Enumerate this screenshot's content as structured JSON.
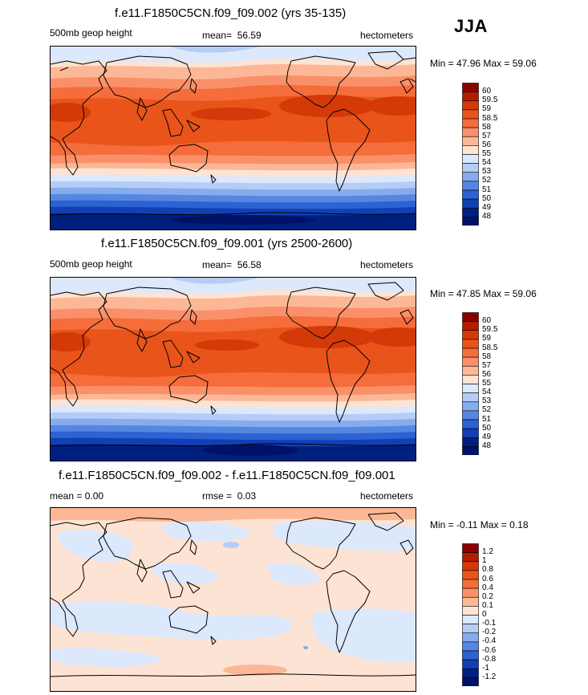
{
  "season": "JJA",
  "panels": [
    {
      "title": "f.e11.F1850C5CN.f09_f09.002 (yrs 35-135)",
      "left_label": "500mb geop height",
      "mean_label": "mean=",
      "mean_value": "56.59",
      "units": "hectometers",
      "minmax_text": "Min =  47.96 Max =  59.06"
    },
    {
      "title": "f.e11.F1850C5CN.f09_f09.001 (yrs 2500-2600)",
      "left_label": "500mb geop height",
      "mean_label": "mean=",
      "mean_value": "56.58",
      "units": "hectometers",
      "minmax_text": "Min =  47.85 Max =  59.06"
    },
    {
      "title": "f.e11.F1850C5CN.f09_f09.002 - f.e11.F1850C5CN.f09_f09.001",
      "left_label": "mean =   0.00",
      "mean_label": "rmse =",
      "mean_value": "0.03",
      "units": "hectometers",
      "minmax_text": "Min =  -0.11 Max =   0.18"
    }
  ],
  "chart_data": [
    {
      "type": "heatmap",
      "title": "f.e11.F1850C5CN.f09_f09.002 (yrs 35-135)",
      "variable": "500mb geop height",
      "units": "hectometers",
      "mean": 56.59,
      "min": 47.96,
      "max": 59.06,
      "colorbar_levels": [
        "60",
        "59.5",
        "59",
        "58.5",
        "58",
        "57",
        "56",
        "55",
        "54",
        "53",
        "52",
        "51",
        "50",
        "49",
        "48"
      ],
      "colorbar_colors": [
        "#8b0000",
        "#b41c00",
        "#d33a08",
        "#e9541a",
        "#f46d3a",
        "#fa9069",
        "#fcb896",
        "#fde3d3",
        "#dce8fb",
        "#b5cdf6",
        "#86acee",
        "#5587e2",
        "#2d62d3",
        "#1140b5",
        "#00207f",
        "#001268"
      ]
    },
    {
      "type": "heatmap",
      "title": "f.e11.F1850C5CN.f09_f09.001 (yrs 2500-2600)",
      "variable": "500mb geop height",
      "units": "hectometers",
      "mean": 56.58,
      "min": 47.85,
      "max": 59.06,
      "colorbar_levels": [
        "60",
        "59.5",
        "59",
        "58.5",
        "58",
        "57",
        "56",
        "55",
        "54",
        "53",
        "52",
        "51",
        "50",
        "49",
        "48"
      ],
      "colorbar_colors": [
        "#8b0000",
        "#b41c00",
        "#d33a08",
        "#e9541a",
        "#f46d3a",
        "#fa9069",
        "#fcb896",
        "#fde3d3",
        "#dce8fb",
        "#b5cdf6",
        "#86acee",
        "#5587e2",
        "#2d62d3",
        "#1140b5",
        "#00207f",
        "#001268"
      ]
    },
    {
      "type": "heatmap",
      "title": "f.e11.F1850C5CN.f09_f09.002 - f.e11.F1850C5CN.f09_f09.001",
      "units": "hectometers",
      "mean": 0.0,
      "rmse": 0.03,
      "min": -0.11,
      "max": 0.18,
      "colorbar_levels": [
        "1.2",
        "1",
        "0.8",
        "0.6",
        "0.4",
        "0.2",
        "0.1",
        "0",
        "-0.1",
        "-0.2",
        "-0.4",
        "-0.6",
        "-0.8",
        "-1",
        "-1.2"
      ],
      "colorbar_colors": [
        "#8b0000",
        "#b41c00",
        "#d33a08",
        "#e9541a",
        "#f46d3a",
        "#fa9069",
        "#fcb896",
        "#fde3d3",
        "#dce8fb",
        "#b5cdf6",
        "#86acee",
        "#5587e2",
        "#2d62d3",
        "#1140b5",
        "#00207f",
        "#001268"
      ]
    }
  ]
}
